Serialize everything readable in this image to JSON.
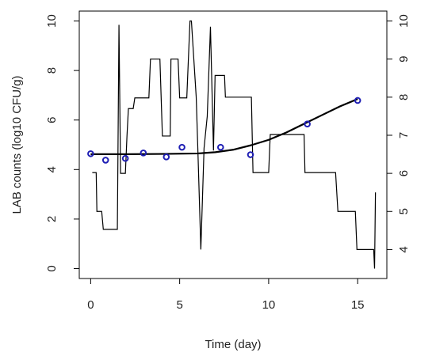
{
  "chart_data": {
    "type": "line",
    "xlabel": "Time (day)",
    "ylabel": "LAB counts (log10 CFU/g)",
    "xlim": [
      -0.64,
      16.64
    ],
    "xticks": [
      0,
      5,
      10,
      15
    ],
    "ylim": [
      -0.4,
      10.4
    ],
    "yticks": [
      0,
      2,
      4,
      6,
      8,
      10
    ],
    "y2lim": [
      3.24,
      10.26
    ],
    "y2ticks": [
      4,
      5,
      6,
      7,
      8,
      9,
      10
    ],
    "series": [
      {
        "type": "step",
        "axis": "y2",
        "color": "#000000",
        "x": [
          0.09,
          0.31,
          0.35,
          0.62,
          0.71,
          1.5,
          1.59,
          1.68,
          1.95,
          2.04,
          2.12,
          2.39,
          2.48,
          3.27,
          3.36,
          3.89,
          4.03,
          4.47,
          4.51,
          4.91,
          5.0,
          5.4,
          5.49,
          5.58,
          5.66,
          5.93,
          6.02,
          6.19,
          6.37,
          6.55,
          6.73,
          6.9,
          6.99,
          7.52,
          7.57,
          9.03,
          9.12,
          10.0,
          10.09,
          11.99,
          12.04,
          13.76,
          13.89,
          14.87,
          14.96,
          15.9,
          15.95,
          16.0
        ],
        "values": [
          6.02,
          6.02,
          5.0,
          5.0,
          4.53,
          4.53,
          9.9,
          6.0,
          6.0,
          6.98,
          7.7,
          7.7,
          7.98,
          7.98,
          9.0,
          9.0,
          6.98,
          6.98,
          9.0,
          9.0,
          7.98,
          7.98,
          9.0,
          10.0,
          10.0,
          8.0,
          6.66,
          4.0,
          6.66,
          7.5,
          9.85,
          6.6,
          8.57,
          8.57,
          8.0,
          8.0,
          6.02,
          6.02,
          7.02,
          7.02,
          6.02,
          6.02,
          5.0,
          5.0,
          4.0,
          4.0,
          3.5,
          5.5
        ]
      },
      {
        "type": "fit",
        "color": "#000000",
        "x": [
          0,
          2,
          4,
          6,
          7,
          8,
          9,
          10,
          11,
          12,
          13,
          14,
          15
        ],
        "values": [
          4.62,
          4.62,
          4.63,
          4.65,
          4.7,
          4.8,
          4.98,
          5.2,
          5.5,
          5.85,
          6.2,
          6.55,
          6.85
        ]
      },
      {
        "type": "points",
        "color": "#1f1fb4",
        "x": [
          0,
          0.84,
          1.95,
          2.96,
          4.25,
          5.13,
          7.3,
          8.98,
          12.17,
          15
        ],
        "values": [
          4.64,
          4.38,
          4.45,
          4.67,
          4.51,
          4.9,
          4.9,
          4.6,
          5.84,
          6.79
        ]
      }
    ]
  }
}
